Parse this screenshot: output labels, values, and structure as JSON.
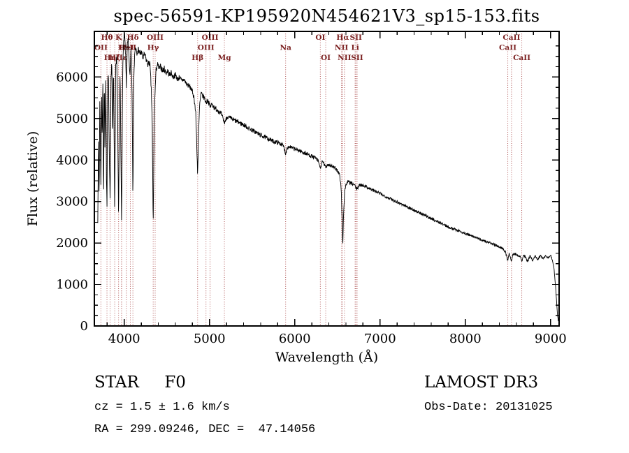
{
  "chart_data": {
    "type": "line",
    "title": "spec-56591-KP195920N454621V3_sp15-153.fits",
    "xlabel": "Wavelength (Å)",
    "ylabel": "Flux (relative)",
    "xlim": [
      3650,
      9100
    ],
    "ylim": [
      0,
      7100
    ],
    "xticks": [
      4000,
      5000,
      6000,
      7000,
      8000,
      9000
    ],
    "yticks": [
      0,
      1000,
      2000,
      3000,
      4000,
      5000,
      6000
    ],
    "x_minor_step": 200,
    "y_minor_step": 250,
    "grid": false,
    "line_color": "#000000",
    "marker_color": "#b05555",
    "label_color": "#7a1f1f",
    "line_markers": [
      {
        "wavelength": 3727,
        "label": "OII",
        "row": 2
      },
      {
        "wavelength": 3798,
        "label": "Hθ",
        "row": 1
      },
      {
        "wavelength": 3835,
        "label": "Hη",
        "row": 3
      },
      {
        "wavelength": 3889,
        "label": "Hζ",
        "row": 3
      },
      {
        "wavelength": 3934,
        "label": "K",
        "row": 1
      },
      {
        "wavelength": 3969,
        "label": "H",
        "row": 2
      },
      {
        "wavelength": 3970,
        "label": "Hε",
        "row": 3
      },
      {
        "wavelength": 4026,
        "label": "HeI",
        "row": 2
      },
      {
        "wavelength": 4072,
        "label": "SII",
        "row": 2
      },
      {
        "wavelength": 4102,
        "label": "Hδ",
        "row": 1
      },
      {
        "wavelength": 4340,
        "label": "Hγ",
        "row": 2
      },
      {
        "wavelength": 4363,
        "label": "OIII",
        "row": 1
      },
      {
        "wavelength": 4861,
        "label": "Hβ",
        "row": 3
      },
      {
        "wavelength": 4959,
        "label": "OIII",
        "row": 2
      },
      {
        "wavelength": 5007,
        "label": "OIII",
        "row": 1
      },
      {
        "wavelength": 5175,
        "label": "Mg",
        "row": 3
      },
      {
        "wavelength": 5893,
        "label": "Na",
        "row": 2
      },
      {
        "wavelength": 6300,
        "label": "OI",
        "row": 1
      },
      {
        "wavelength": 6363,
        "label": "OI",
        "row": 3
      },
      {
        "wavelength": 6548,
        "label": "NII",
        "row": 2
      },
      {
        "wavelength": 6563,
        "label": "Hα",
        "row": 1
      },
      {
        "wavelength": 6583,
        "label": "NII",
        "row": 3
      },
      {
        "wavelength": 6708,
        "label": "Li",
        "row": 2
      },
      {
        "wavelength": 6717,
        "label": "SII",
        "row": 1
      },
      {
        "wavelength": 6731,
        "label": "SII",
        "row": 3
      },
      {
        "wavelength": 8498,
        "label": "CaII",
        "row": 2
      },
      {
        "wavelength": 8542,
        "label": "CaII",
        "row": 1
      },
      {
        "wavelength": 8662,
        "label": "CaII",
        "row": 3
      }
    ],
    "spectrum": {
      "sample_step": 3,
      "noise_profile": [
        [
          3690,
          240
        ],
        [
          4200,
          170
        ],
        [
          4800,
          130
        ],
        [
          5500,
          110
        ],
        [
          6500,
          90
        ],
        [
          7500,
          70
        ],
        [
          8500,
          55
        ],
        [
          9090,
          45
        ]
      ],
      "anchors": [
        [
          3690,
          2600
        ],
        [
          3700,
          4600
        ],
        [
          3706,
          3000
        ],
        [
          3714,
          5400
        ],
        [
          3722,
          4300
        ],
        [
          3727,
          3100
        ],
        [
          3734,
          5700
        ],
        [
          3742,
          4500
        ],
        [
          3750,
          5900
        ],
        [
          3758,
          3000
        ],
        [
          3766,
          6000
        ],
        [
          3775,
          4200
        ],
        [
          3784,
          6100
        ],
        [
          3792,
          3500
        ],
        [
          3798,
          2800
        ],
        [
          3806,
          5900
        ],
        [
          3815,
          6200
        ],
        [
          3824,
          4300
        ],
        [
          3835,
          2900
        ],
        [
          3846,
          6100
        ],
        [
          3856,
          6300
        ],
        [
          3865,
          4600
        ],
        [
          3875,
          6200
        ],
        [
          3889,
          2700
        ],
        [
          3900,
          6200
        ],
        [
          3912,
          6400
        ],
        [
          3922,
          5400
        ],
        [
          3934,
          2500
        ],
        [
          3944,
          5200
        ],
        [
          3952,
          6100
        ],
        [
          3960,
          4400
        ],
        [
          3970,
          2450
        ],
        [
          3982,
          6200
        ],
        [
          3995,
          6900
        ],
        [
          4005,
          7000
        ],
        [
          4015,
          6600
        ],
        [
          4026,
          5800
        ],
        [
          4035,
          6700
        ],
        [
          4046,
          6900
        ],
        [
          4055,
          6500
        ],
        [
          4068,
          6000
        ],
        [
          4080,
          6700
        ],
        [
          4092,
          5600
        ],
        [
          4102,
          3100
        ],
        [
          4112,
          5800
        ],
        [
          4122,
          6600
        ],
        [
          4135,
          6700
        ],
        [
          4150,
          6500
        ],
        [
          4165,
          6700
        ],
        [
          4180,
          6550
        ],
        [
          4200,
          6600
        ],
        [
          4220,
          6450
        ],
        [
          4240,
          6550
        ],
        [
          4260,
          6400
        ],
        [
          4280,
          6300
        ],
        [
          4300,
          6350
        ],
        [
          4315,
          5800
        ],
        [
          4328,
          5000
        ],
        [
          4340,
          2350
        ],
        [
          4352,
          5000
        ],
        [
          4363,
          5700
        ],
        [
          4375,
          6200
        ],
        [
          4390,
          6300
        ],
        [
          4410,
          6200
        ],
        [
          4430,
          6250
        ],
        [
          4450,
          6150
        ],
        [
          4470,
          6200
        ],
        [
          4490,
          6100
        ],
        [
          4510,
          6150
        ],
        [
          4530,
          6050
        ],
        [
          4550,
          6100
        ],
        [
          4575,
          6000
        ],
        [
          4600,
          6050
        ],
        [
          4625,
          5950
        ],
        [
          4650,
          6000
        ],
        [
          4675,
          5900
        ],
        [
          4700,
          5950
        ],
        [
          4725,
          5850
        ],
        [
          4750,
          5800
        ],
        [
          4775,
          5750
        ],
        [
          4800,
          5650
        ],
        [
          4820,
          5500
        ],
        [
          4840,
          5100
        ],
        [
          4852,
          4300
        ],
        [
          4861,
          3650
        ],
        [
          4872,
          4600
        ],
        [
          4884,
          5300
        ],
        [
          4900,
          5600
        ],
        [
          4920,
          5550
        ],
        [
          4940,
          5500
        ],
        [
          4959,
          5380
        ],
        [
          4980,
          5450
        ],
        [
          5007,
          5280
        ],
        [
          5030,
          5350
        ],
        [
          5060,
          5250
        ],
        [
          5100,
          5200
        ],
        [
          5140,
          5100
        ],
        [
          5175,
          4900
        ],
        [
          5210,
          5050
        ],
        [
          5250,
          5000
        ],
        [
          5300,
          4950
        ],
        [
          5350,
          4900
        ],
        [
          5400,
          4850
        ],
        [
          5450,
          4780
        ],
        [
          5500,
          4720
        ],
        [
          5550,
          4660
        ],
        [
          5600,
          4600
        ],
        [
          5650,
          4550
        ],
        [
          5700,
          4500
        ],
        [
          5750,
          4450
        ],
        [
          5800,
          4420
        ],
        [
          5850,
          4380
        ],
        [
          5875,
          4300
        ],
        [
          5893,
          4150
        ],
        [
          5910,
          4300
        ],
        [
          5940,
          4320
        ],
        [
          5980,
          4280
        ],
        [
          6020,
          4250
        ],
        [
          6060,
          4220
        ],
        [
          6100,
          4180
        ],
        [
          6150,
          4140
        ],
        [
          6200,
          4090
        ],
        [
          6250,
          4040
        ],
        [
          6280,
          3950
        ],
        [
          6300,
          3800
        ],
        [
          6320,
          3950
        ],
        [
          6340,
          3920
        ],
        [
          6363,
          3820
        ],
        [
          6385,
          3900
        ],
        [
          6420,
          3870
        ],
        [
          6460,
          3820
        ],
        [
          6500,
          3750
        ],
        [
          6525,
          3650
        ],
        [
          6545,
          3300
        ],
        [
          6556,
          2500
        ],
        [
          6563,
          1900
        ],
        [
          6572,
          2700
        ],
        [
          6585,
          3250
        ],
        [
          6600,
          3400
        ],
        [
          6620,
          3480
        ],
        [
          6650,
          3450
        ],
        [
          6680,
          3420
        ],
        [
          6708,
          3380
        ],
        [
          6717,
          3320
        ],
        [
          6731,
          3300
        ],
        [
          6750,
          3380
        ],
        [
          6780,
          3400
        ],
        [
          6820,
          3380
        ],
        [
          6860,
          3330
        ],
        [
          6900,
          3290
        ],
        [
          6950,
          3240
        ],
        [
          7000,
          3190
        ],
        [
          7050,
          3140
        ],
        [
          7100,
          3090
        ],
        [
          7150,
          3040
        ],
        [
          7200,
          2990
        ],
        [
          7250,
          2940
        ],
        [
          7300,
          2890
        ],
        [
          7350,
          2840
        ],
        [
          7400,
          2790
        ],
        [
          7450,
          2740
        ],
        [
          7500,
          2690
        ],
        [
          7550,
          2640
        ],
        [
          7600,
          2590
        ],
        [
          7650,
          2540
        ],
        [
          7700,
          2490
        ],
        [
          7750,
          2440
        ],
        [
          7800,
          2390
        ],
        [
          7850,
          2350
        ],
        [
          7900,
          2310
        ],
        [
          7950,
          2270
        ],
        [
          8000,
          2230
        ],
        [
          8050,
          2190
        ],
        [
          8100,
          2150
        ],
        [
          8150,
          2110
        ],
        [
          8200,
          2070
        ],
        [
          8250,
          2030
        ],
        [
          8300,
          1990
        ],
        [
          8350,
          1950
        ],
        [
          8400,
          1910
        ],
        [
          8440,
          1860
        ],
        [
          8470,
          1790
        ],
        [
          8498,
          1580
        ],
        [
          8515,
          1760
        ],
        [
          8542,
          1560
        ],
        [
          8560,
          1740
        ],
        [
          8590,
          1730
        ],
        [
          8620,
          1700
        ],
        [
          8645,
          1690
        ],
        [
          8662,
          1540
        ],
        [
          8680,
          1700
        ],
        [
          8700,
          1680
        ],
        [
          8730,
          1540
        ],
        [
          8760,
          1700
        ],
        [
          8790,
          1560
        ],
        [
          8820,
          1700
        ],
        [
          8850,
          1600
        ],
        [
          8880,
          1700
        ],
        [
          8910,
          1620
        ],
        [
          8940,
          1700
        ],
        [
          8970,
          1640
        ],
        [
          9000,
          1700
        ],
        [
          9020,
          1600
        ],
        [
          9040,
          1400
        ],
        [
          9060,
          900
        ],
        [
          9080,
          300
        ],
        [
          9090,
          120
        ]
      ]
    }
  },
  "annotations": {
    "class_label": "STAR     F0",
    "survey": "LAMOST DR3",
    "cz": "cz = 1.5 ± 1.6 km/s",
    "obs_date": "Obs-Date: 20131025",
    "radec": "RA = 299.09246, DEC =  47.14056"
  }
}
